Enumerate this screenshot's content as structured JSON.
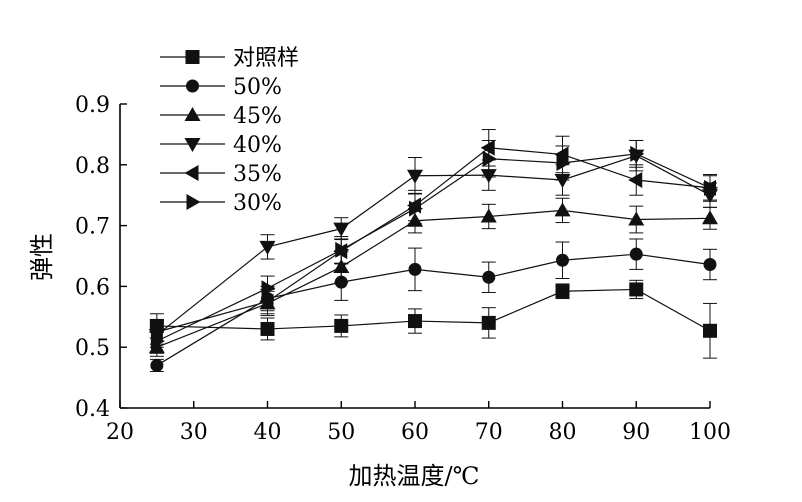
{
  "chart_data": {
    "type": "line",
    "title": "",
    "xlabel": "加热温度/℃",
    "ylabel": "弹性",
    "xlim": [
      20,
      100
    ],
    "ylim": [
      0.4,
      0.9
    ],
    "xticks": [
      20,
      30,
      40,
      50,
      60,
      70,
      80,
      90,
      100
    ],
    "yticks": [
      0.4,
      0.5,
      0.6,
      0.7,
      0.8,
      0.9
    ],
    "grid": false,
    "legend": "top-left",
    "x": [
      25,
      40,
      50,
      60,
      70,
      80,
      90,
      100
    ],
    "series": [
      {
        "name": "对照样",
        "marker": "square",
        "values": [
          0.535,
          0.53,
          0.535,
          0.543,
          0.54,
          0.592,
          0.595,
          0.527
        ],
        "errors": [
          0.02,
          0.018,
          0.018,
          0.02,
          0.025,
          0.012,
          0.015,
          0.045
        ]
      },
      {
        "name": "50%",
        "marker": "circle",
        "values": [
          0.47,
          0.58,
          0.607,
          0.628,
          0.615,
          0.643,
          0.653,
          0.636
        ],
        "errors": [
          0.01,
          0.02,
          0.03,
          0.035,
          0.025,
          0.03,
          0.025,
          0.025
        ]
      },
      {
        "name": "45%",
        "marker": "triangle-up",
        "values": [
          0.5,
          0.572,
          0.632,
          0.708,
          0.715,
          0.725,
          0.71,
          0.712
        ],
        "errors": [
          0.015,
          0.02,
          0.025,
          0.02,
          0.02,
          0.02,
          0.022,
          0.018
        ]
      },
      {
        "name": "40%",
        "marker": "triangle-down",
        "values": [
          0.52,
          0.665,
          0.695,
          0.782,
          0.783,
          0.775,
          0.815,
          0.75
        ],
        "errors": [
          0.02,
          0.02,
          0.018,
          0.03,
          0.025,
          0.025,
          0.025,
          0.02
        ]
      },
      {
        "name": "35%",
        "marker": "triangle-left",
        "values": [
          0.525,
          0.575,
          0.658,
          0.733,
          0.828,
          0.817,
          0.775,
          0.762
        ],
        "errors": [
          0.02,
          0.02,
          0.02,
          0.025,
          0.03,
          0.03,
          0.025,
          0.02
        ]
      },
      {
        "name": "30%",
        "marker": "triangle-right",
        "values": [
          0.51,
          0.597,
          0.66,
          0.728,
          0.81,
          0.803,
          0.818,
          0.762
        ],
        "errors": [
          0.02,
          0.02,
          0.022,
          0.025,
          0.03,
          0.028,
          0.022,
          0.022
        ]
      }
    ]
  }
}
